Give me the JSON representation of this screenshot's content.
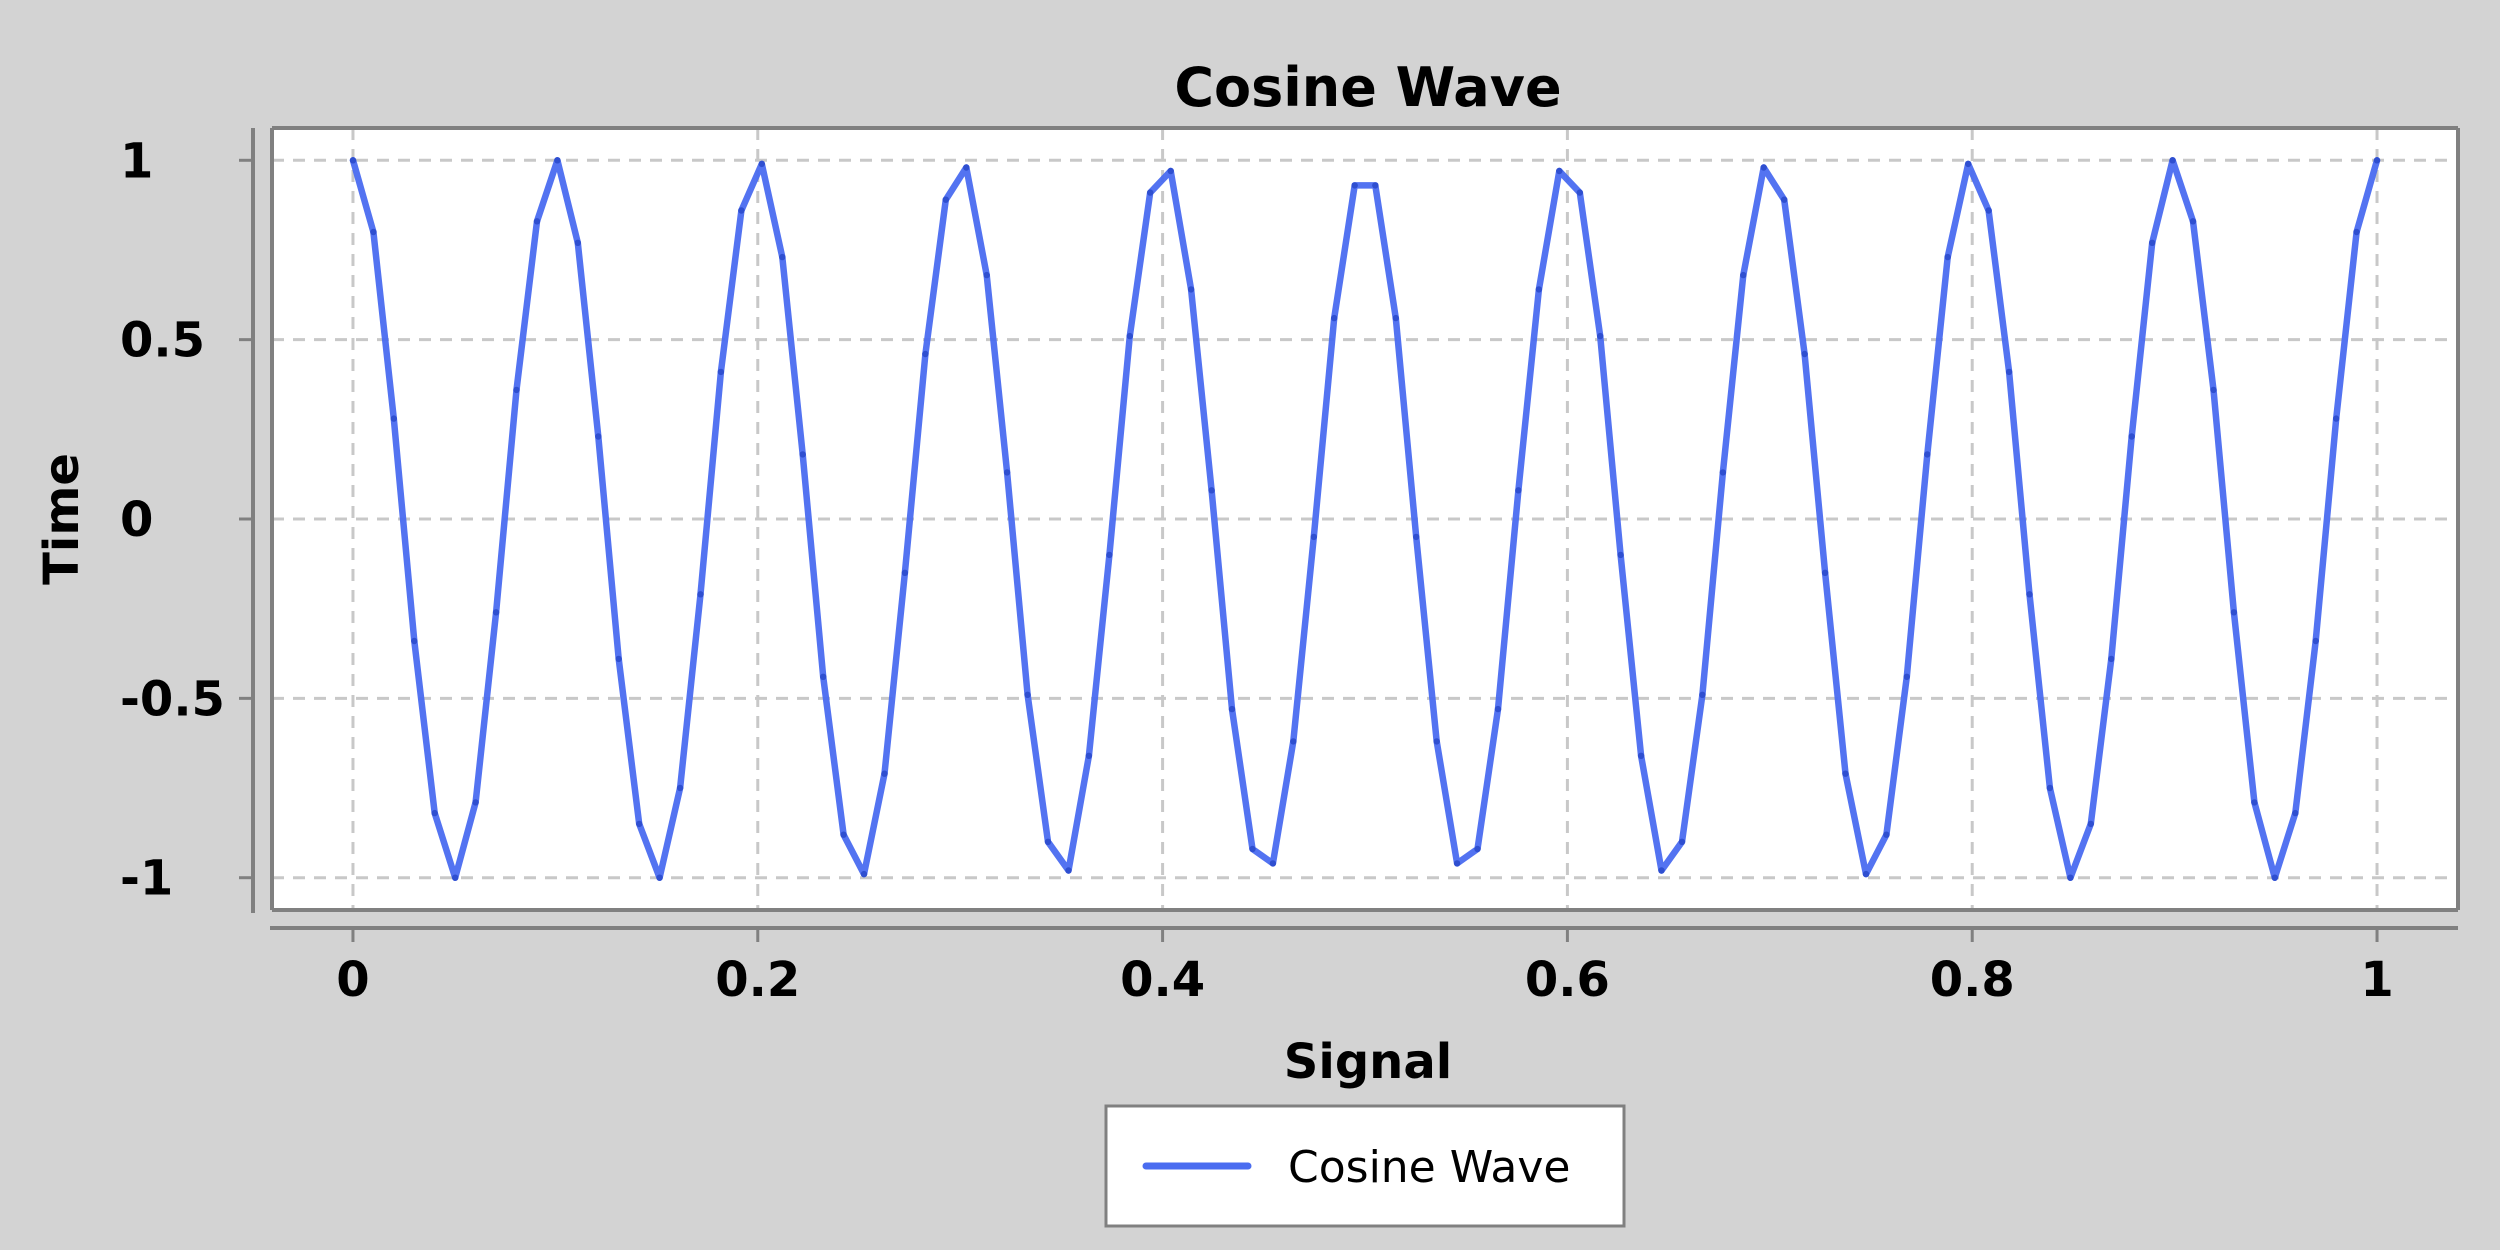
{
  "colors": {
    "background": "#d3d3d3",
    "plot_area": "#ffffff",
    "series": "#4a6cf0"
  },
  "chart_data": {
    "type": "line",
    "title": "Cosine Wave",
    "xlabel": "Signal",
    "ylabel": "Time",
    "xlim": [
      -0.04,
      1.04
    ],
    "ylim": [
      -1.09,
      1.09
    ],
    "x_ticks": [
      0,
      0.2,
      0.4,
      0.6,
      0.8,
      1
    ],
    "x_tick_labels": [
      "0",
      "0.2",
      "0.4",
      "0.6",
      "0.8",
      "1"
    ],
    "y_ticks": [
      1,
      0.5,
      0,
      -0.5,
      -1
    ],
    "y_tick_labels": [
      "1",
      "0.5",
      "0",
      "-0.5",
      "-1"
    ],
    "grid": true,
    "legend": {
      "position": "bottom-center"
    },
    "series": [
      {
        "name": "Cosine Wave",
        "color": "#4a6cf0",
        "x": [
          0,
          0.0101,
          0.0202,
          0.0303,
          0.0404,
          0.0505,
          0.0606,
          0.0707,
          0.0808,
          0.0909,
          0.101,
          0.1111,
          0.1212,
          0.1313,
          0.1414,
          0.1515,
          0.1616,
          0.1717,
          0.1818,
          0.1919,
          0.202,
          0.2121,
          0.2222,
          0.2323,
          0.2424,
          0.2525,
          0.2626,
          0.2727,
          0.2828,
          0.2929,
          0.303,
          0.3131,
          0.3232,
          0.3333,
          0.3434,
          0.3535,
          0.3636,
          0.3737,
          0.3838,
          0.3939,
          0.404,
          0.4141,
          0.4242,
          0.4343,
          0.4444,
          0.4545,
          0.4646,
          0.4747,
          0.4848,
          0.4949,
          0.5051,
          0.5152,
          0.5253,
          0.5354,
          0.5455,
          0.5556,
          0.5657,
          0.5758,
          0.5859,
          0.596,
          0.6061,
          0.6162,
          0.6263,
          0.6364,
          0.6465,
          0.6566,
          0.6667,
          0.6768,
          0.6869,
          0.697,
          0.7071,
          0.7172,
          0.7273,
          0.7374,
          0.7475,
          0.7576,
          0.7677,
          0.7778,
          0.7879,
          0.798,
          0.8081,
          0.8182,
          0.8283,
          0.8384,
          0.8485,
          0.8586,
          0.8687,
          0.8788,
          0.8889,
          0.899,
          0.9091,
          0.9192,
          0.9293,
          0.9394,
          0.9495,
          0.9596,
          0.9697,
          0.9798,
          0.9899,
          1
        ],
        "y": [
          1,
          0.8,
          0.28,
          -0.34,
          -0.82,
          -1,
          -0.79,
          -0.26,
          0.36,
          0.83,
          1,
          0.77,
          0.23,
          -0.39,
          -0.85,
          -1,
          -0.75,
          -0.21,
          0.41,
          0.86,
          0.99,
          0.73,
          0.18,
          -0.44,
          -0.88,
          -0.99,
          -0.71,
          -0.15,
          0.46,
          0.89,
          0.98,
          0.68,
          0.13,
          -0.49,
          -0.9,
          -0.98,
          -0.66,
          -0.1,
          0.51,
          0.91,
          0.97,
          0.64,
          0.08,
          -0.53,
          -0.92,
          -0.96,
          -0.62,
          -0.05,
          0.56,
          0.93,
          0.93,
          0.56,
          -0.05,
          -0.62,
          -0.96,
          -0.92,
          -0.53,
          0.08,
          0.64,
          0.97,
          0.91,
          0.51,
          -0.1,
          -0.66,
          -0.98,
          -0.9,
          -0.49,
          0.13,
          0.68,
          0.98,
          0.89,
          0.46,
          -0.15,
          -0.71,
          -0.99,
          -0.88,
          -0.44,
          0.18,
          0.73,
          0.99,
          0.86,
          0.41,
          -0.21,
          -0.75,
          -1,
          -0.85,
          -0.39,
          0.23,
          0.77,
          1,
          0.83,
          0.36,
          -0.26,
          -0.79,
          -1,
          -0.82,
          -0.34,
          0.28,
          0.8,
          1
        ]
      }
    ]
  }
}
